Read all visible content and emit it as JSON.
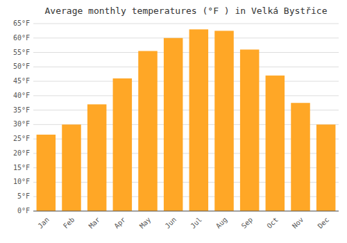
{
  "chart_data": {
    "type": "bar",
    "title": "Average monthly temperatures (°F ) in Velká Bystřice",
    "categories": [
      "Jan",
      "Feb",
      "Mar",
      "Apr",
      "May",
      "Jun",
      "Jul",
      "Aug",
      "Sep",
      "Oct",
      "Nov",
      "Dec"
    ],
    "values": [
      26.5,
      30.0,
      37.0,
      46.0,
      55.5,
      60.0,
      63.0,
      62.5,
      56.0,
      47.0,
      37.5,
      30.0
    ],
    "color": "#FFA726",
    "ylim": [
      0,
      65
    ],
    "yticks": [
      {
        "value": 0,
        "label": "0°F"
      },
      {
        "value": 5,
        "label": "5°F"
      },
      {
        "value": 10,
        "label": "10°F"
      },
      {
        "value": 15,
        "label": "15°F"
      },
      {
        "value": 20,
        "label": "20°F"
      },
      {
        "value": 25,
        "label": "25°F"
      },
      {
        "value": 30,
        "label": "30°F"
      },
      {
        "value": 35,
        "label": "35°F"
      },
      {
        "value": 40,
        "label": "40°F"
      },
      {
        "value": 45,
        "label": "45°F"
      },
      {
        "value": 50,
        "label": "50°F"
      },
      {
        "value": 55,
        "label": "55°F"
      },
      {
        "value": 60,
        "label": "60°F"
      },
      {
        "value": 65,
        "label": "65°F"
      }
    ],
    "grid": true
  }
}
